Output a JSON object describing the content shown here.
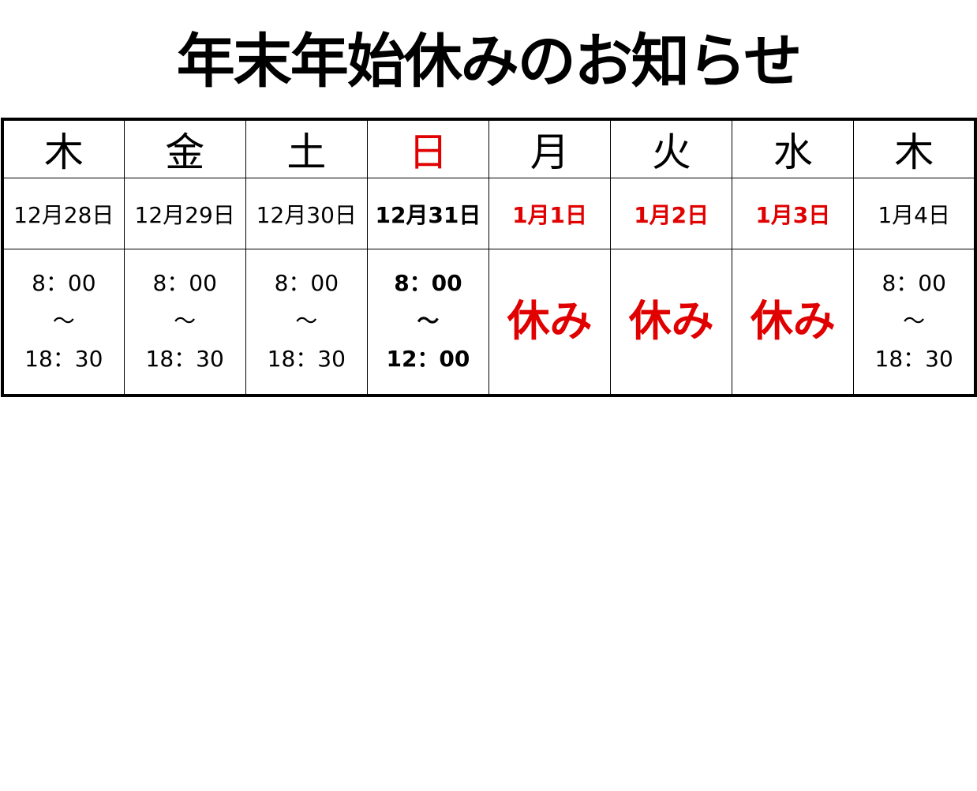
{
  "title": "年末年始休みのお知らせ",
  "colors": {
    "holiday_red": "#e00000",
    "text": "#000000"
  },
  "days": [
    {
      "dow": "木",
      "date": "12月28日",
      "open": "8：00",
      "sep": "～",
      "close": "18：30",
      "closed": false,
      "dow_red": false,
      "date_red": false,
      "bold": false
    },
    {
      "dow": "金",
      "date": "12月29日",
      "open": "8：00",
      "sep": "～",
      "close": "18：30",
      "closed": false,
      "dow_red": false,
      "date_red": false,
      "bold": false
    },
    {
      "dow": "土",
      "date": "12月30日",
      "open": "8：00",
      "sep": "～",
      "close": "18：30",
      "closed": false,
      "dow_red": false,
      "date_red": false,
      "bold": false
    },
    {
      "dow": "日",
      "date": "12月31日",
      "open": "8：00",
      "sep": "～",
      "close": "12：00",
      "closed": false,
      "dow_red": true,
      "date_red": false,
      "bold": true
    },
    {
      "dow": "月",
      "date": "1月1日",
      "closed_label": "休み",
      "closed": true,
      "dow_red": false,
      "date_red": true,
      "bold": true
    },
    {
      "dow": "火",
      "date": "1月2日",
      "closed_label": "休み",
      "closed": true,
      "dow_red": false,
      "date_red": true,
      "bold": true
    },
    {
      "dow": "水",
      "date": "1月3日",
      "closed_label": "休み",
      "closed": true,
      "dow_red": false,
      "date_red": true,
      "bold": true
    },
    {
      "dow": "木",
      "date": "1月4日",
      "open": "8：00",
      "sep": "～",
      "close": "18：30",
      "closed": false,
      "dow_red": false,
      "date_red": false,
      "bold": false
    }
  ]
}
